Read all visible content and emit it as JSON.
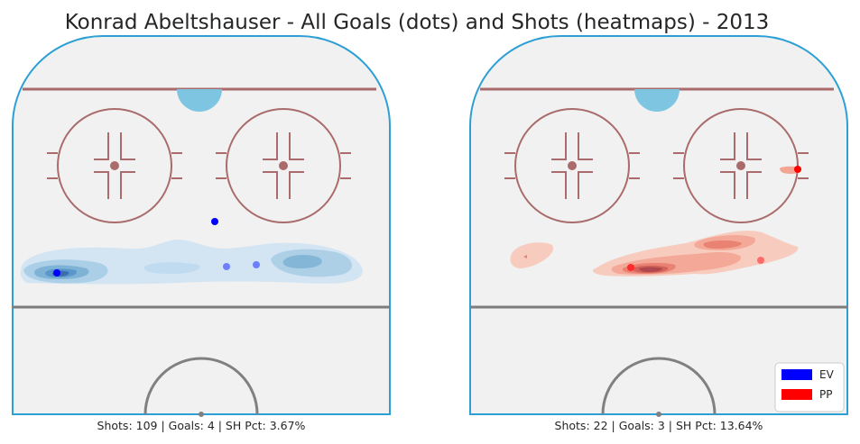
{
  "title": "Konrad Abeltshauser - All Goals (dots) and Shots (heatmaps) - 2013",
  "colors": {
    "ice": "#f1f1f1",
    "boards": "#2c9fd4",
    "goal_line": "#a96b6b",
    "crease": "#7ec5e2",
    "faceoff": "#a96b6b",
    "blue_line": "#7c7c7c",
    "center_circle": "#808080",
    "ev": "#0000ff",
    "pp": "#ff0000"
  },
  "chart_data": [
    {
      "type": "heatmap",
      "panel": "EV",
      "caption": "Shots: 109 | Goals: 4 | SH Pct: 3.67%",
      "goals": [
        {
          "x": -62,
          "y": 69
        },
        {
          "x": -23,
          "y": 77
        },
        {
          "x": -23,
          "y": 34
        },
        {
          "x": -64,
          "y": 25
        }
      ]
    },
    {
      "type": "heatmap",
      "panel": "PP",
      "caption": "Shots: 22 | Goals: 3 | SH Pct: 13.64%",
      "goals": [
        {
          "x": -69,
          "y": 30
        },
        {
          "x": -80,
          "y": 60
        },
        {
          "x": -26,
          "y": 66
        }
      ]
    }
  ],
  "legend": [
    {
      "label": "EV",
      "color": "#0000ff"
    },
    {
      "label": "PP",
      "color": "#ff0000"
    }
  ]
}
